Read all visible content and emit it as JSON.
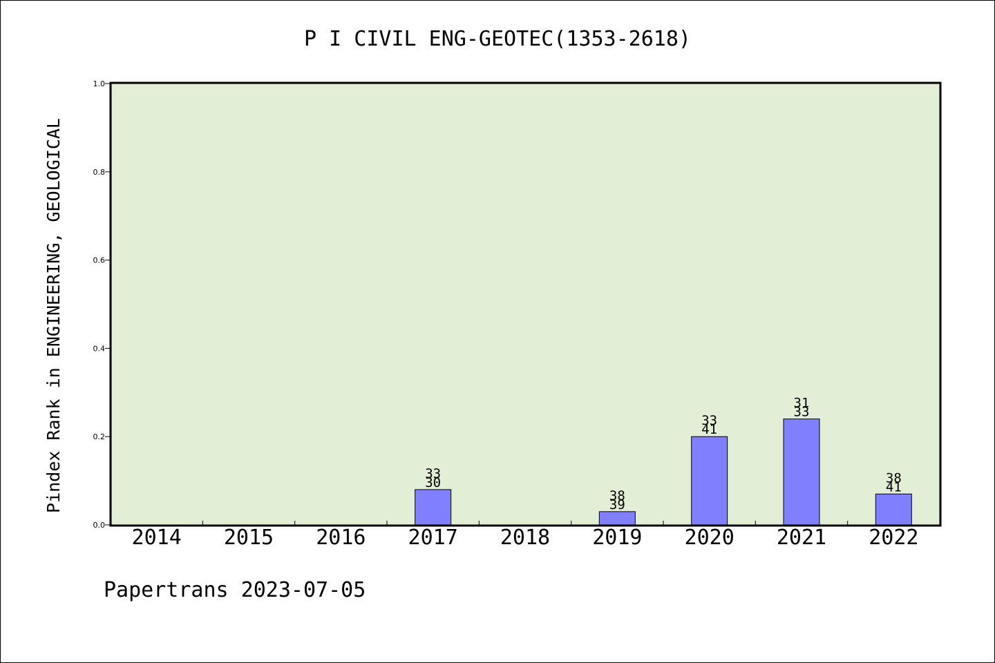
{
  "chart_data": {
    "type": "bar",
    "title": "P I CIVIL ENG-GEOTEC(1353-2618)",
    "xlabel": "",
    "ylabel": "Pindex Rank in ENGINEERING, GEOLOGICAL",
    "ylim": [
      0,
      1.0
    ],
    "yticks": [
      "0.0",
      "0.2",
      "0.4",
      "0.6",
      "0.8",
      "1.0"
    ],
    "categories": [
      "2014",
      "2015",
      "2016",
      "2017",
      "2018",
      "2019",
      "2020",
      "2021",
      "2022"
    ],
    "values": [
      null,
      null,
      null,
      0.08,
      null,
      0.03,
      0.2,
      0.24,
      0.07
    ],
    "bar_labels": [
      null,
      null,
      null,
      [
        "33",
        "30"
      ],
      null,
      [
        "38",
        "39"
      ],
      [
        "33",
        "41"
      ],
      [
        "31",
        "33"
      ],
      [
        "38",
        "41"
      ]
    ],
    "grid": false,
    "colors": {
      "plot_bg": "#e2efd6",
      "bar": "#8080ff",
      "axis": "#000000"
    }
  },
  "footer": "Papertrans 2023-07-05"
}
